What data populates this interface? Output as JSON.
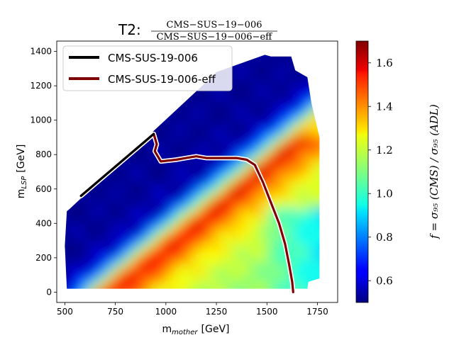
{
  "chart_data": {
    "type": "heatmap",
    "title": {
      "prefix": "T2:",
      "numerator": "CMS−SUS−19−006",
      "denominator": "CMS−SUS−19−006−eff"
    },
    "xlabel": {
      "main": "m",
      "sub": "mother",
      "unit": "[GeV]"
    },
    "ylabel": {
      "main": "m",
      "sub": "LSP",
      "unit": "[GeV]"
    },
    "colorbar_label": "f = σ₉₅ (CMS) / σ₉₅ (ADL)",
    "xlim": [
      460,
      1850
    ],
    "ylim": [
      -60,
      1460
    ],
    "xticks": [
      500,
      750,
      1000,
      1250,
      1500,
      1750
    ],
    "yticks": [
      0,
      200,
      400,
      600,
      800,
      1000,
      1200,
      1400
    ],
    "colorbar": {
      "range": [
        0.5,
        1.7
      ],
      "ticks": [
        "0.6",
        "0.8",
        "1.0",
        "1.2",
        "1.4",
        "1.6"
      ],
      "colormap": "jet"
    },
    "grid": false,
    "legend": {
      "placement": "top-left",
      "entries": [
        {
          "label": "CMS-SUS-19-006",
          "color": "#000000"
        },
        {
          "label": "CMS-SUS-19-006-eff",
          "color": "#800000"
        }
      ]
    },
    "series": [
      {
        "name": "CMS-SUS-19-006",
        "color": "#000000",
        "x": [
          580,
          940
        ],
        "y": [
          560,
          920
        ]
      },
      {
        "name": "CMS-SUS-19-006-eff",
        "color": "#800000",
        "x": [
          580,
          940,
          955,
          945,
          965,
          975,
          1050,
          1100,
          1150,
          1200,
          1280,
          1350,
          1400,
          1440,
          1480,
          1520,
          1560,
          1590,
          1610,
          1625,
          1630
        ],
        "y": [
          560,
          920,
          860,
          820,
          780,
          760,
          770,
          780,
          790,
          780,
          780,
          780,
          770,
          740,
          640,
          520,
          400,
          280,
          160,
          60,
          0
        ]
      }
    ]
  }
}
